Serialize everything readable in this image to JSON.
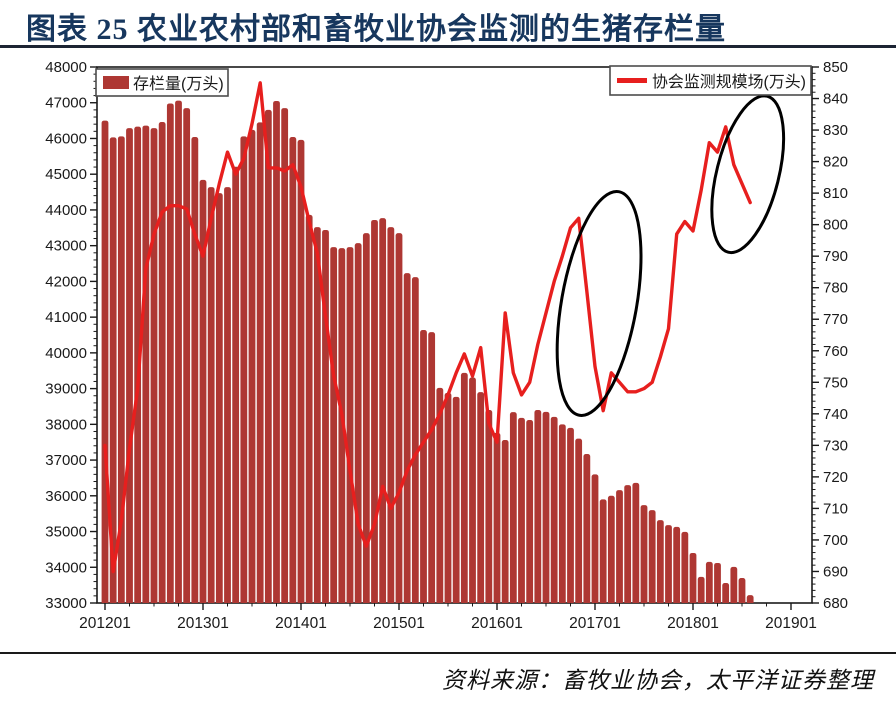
{
  "title": {
    "text": "图表 25 农业农村部和畜牧业协会监测的生猪存栏量"
  },
  "source": {
    "text": "资料来源：畜牧业协会，太平洋证券整理"
  },
  "colors": {
    "bar": "#AE3733",
    "line": "#E71F1E",
    "title": "#17375E",
    "axis": "#1a1a1a",
    "annotation": "#000000",
    "legend_border": "#4d4d4d"
  },
  "chart_data": {
    "type": "bar+line",
    "start_month": "2012-01",
    "end_month": "2018-08",
    "grid": false,
    "x_tick_labels": [
      "201201",
      "201301",
      "201401",
      "201501",
      "201601",
      "201701",
      "201801",
      "201901"
    ],
    "left_axis": {
      "min": 33000,
      "max": 48000,
      "tick_step": 1000,
      "tick_labels": [
        "48000",
        "47000",
        "46000",
        "45000",
        "44000",
        "43000",
        "42000",
        "41000",
        "40000",
        "39000",
        "38000",
        "37000",
        "36000",
        "35000",
        "34000",
        "33000"
      ]
    },
    "right_axis": {
      "min": 680,
      "max": 850,
      "tick_step": 10,
      "tick_labels": [
        "850",
        "840",
        "830",
        "820",
        "810",
        "800",
        "790",
        "780",
        "770",
        "760",
        "750",
        "740",
        "730",
        "720",
        "710",
        "700",
        "690",
        "680"
      ]
    },
    "series": [
      {
        "name": "存栏量(万头)",
        "type": "bar",
        "axis": "left",
        "color": "#AE3733",
        "legend_position": "top-left",
        "values": [
          46500,
          46030,
          46060,
          46290,
          46330,
          46360,
          46290,
          46460,
          46980,
          47060,
          46850,
          46040,
          44840,
          44640,
          44470,
          44640,
          45210,
          46060,
          46240,
          46450,
          46800,
          47050,
          46850,
          46040,
          45960,
          43860,
          43520,
          43440,
          42960,
          42930,
          42960,
          43070,
          43350,
          43720,
          43770,
          43520,
          43350,
          42230,
          42120,
          40640,
          40580,
          39020,
          38880,
          38770,
          39440,
          39310,
          38900,
          38400,
          37760,
          37560,
          38340,
          38180,
          38120,
          38400,
          38350,
          38210,
          38000,
          37900,
          37600,
          37170,
          36600,
          35900,
          36000,
          36160,
          36300,
          36360,
          35740,
          35600,
          35320,
          35180,
          35130,
          34990,
          34400,
          33730,
          34150,
          34120,
          33560,
          34010,
          33700,
          33220
        ]
      },
      {
        "name": "协会监测规模场(万头)",
        "type": "line",
        "axis": "right",
        "color": "#E71F1E",
        "legend_position": "top-right",
        "values": [
          730,
          690,
          706,
          729,
          748,
          786,
          797,
          804,
          806,
          806,
          805,
          797,
          790,
          802,
          813,
          823,
          816,
          821,
          832,
          845,
          818,
          818,
          817,
          819,
          812,
          801,
          791,
          771,
          752,
          740,
          722,
          705,
          698,
          705,
          717,
          710,
          715,
          722,
          727,
          731,
          735,
          740,
          746,
          753,
          759,
          752,
          761,
          737,
          731,
          772,
          753,
          746,
          750,
          762,
          772,
          782,
          790,
          799,
          802,
          779,
          755,
          741,
          753,
          750,
          747,
          747,
          748,
          750,
          758,
          767,
          797,
          801,
          798,
          811,
          826,
          823,
          831,
          819,
          813,
          807
        ]
      }
    ],
    "annotations": [
      {
        "type": "ellipse",
        "note": "circles the 2016-11 line peak (~800) and drop to 2017 trough (~741)",
        "center_month_index": 60.5,
        "center_value_right_axis": 775,
        "radius_months": 4.6,
        "radius_value": 36,
        "rotate_deg": 10
      },
      {
        "type": "ellipse",
        "note": "circles the 2018 line peak (~831) and decline to ~807",
        "center_month_index": 78.7,
        "center_value_right_axis": 816,
        "radius_months": 3.8,
        "radius_value": 25.5,
        "rotate_deg": 14
      }
    ]
  }
}
